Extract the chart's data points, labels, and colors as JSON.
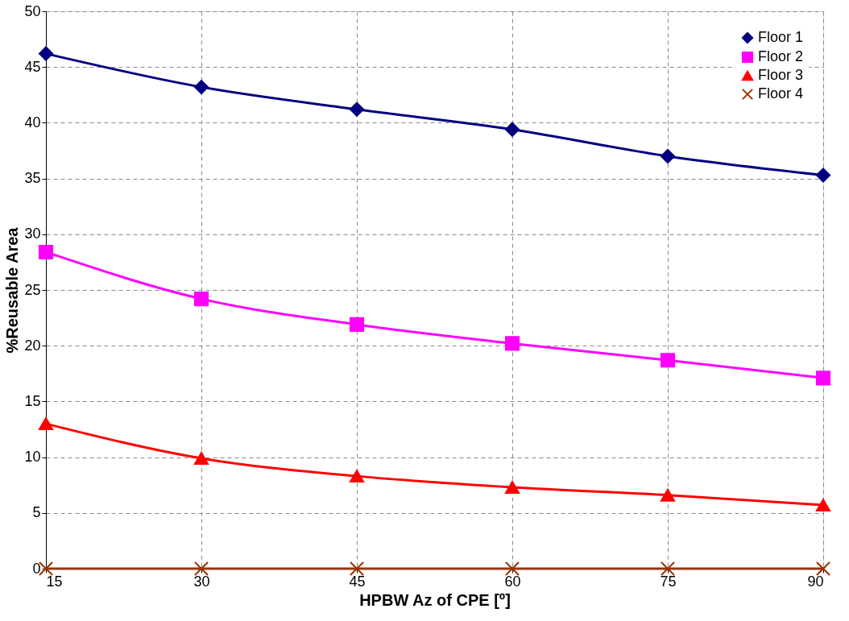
{
  "chart_data": {
    "type": "line",
    "xlabel": "HPBW Az of CPE [º]",
    "ylabel": "%Reusable Area",
    "x": [
      15,
      30,
      45,
      60,
      75,
      90
    ],
    "series": [
      {
        "name": "Floor 1",
        "color": "#000080",
        "marker": "diamond",
        "values": [
          46.2,
          43.2,
          41.2,
          39.4,
          37.0,
          35.3
        ]
      },
      {
        "name": "Floor 2",
        "color": "#ff00ff",
        "marker": "square",
        "values": [
          28.4,
          24.2,
          21.9,
          20.2,
          18.7,
          17.1
        ]
      },
      {
        "name": "Floor 3",
        "color": "#ff0000",
        "marker": "triangle",
        "values": [
          13.0,
          9.9,
          8.3,
          7.3,
          6.6,
          5.7
        ]
      },
      {
        "name": "Floor 4",
        "color": "#993300",
        "marker": "cross",
        "values": [
          0,
          0,
          0,
          0,
          0,
          0
        ]
      }
    ],
    "xlim": [
      15,
      90
    ],
    "xticks": [
      15,
      30,
      45,
      60,
      75,
      90
    ],
    "ylim": [
      0,
      50
    ],
    "yticks": [
      0,
      5,
      10,
      15,
      20,
      25,
      30,
      35,
      40,
      45,
      50
    ],
    "grid": true,
    "legend": "top right",
    "line_style": "solid"
  }
}
